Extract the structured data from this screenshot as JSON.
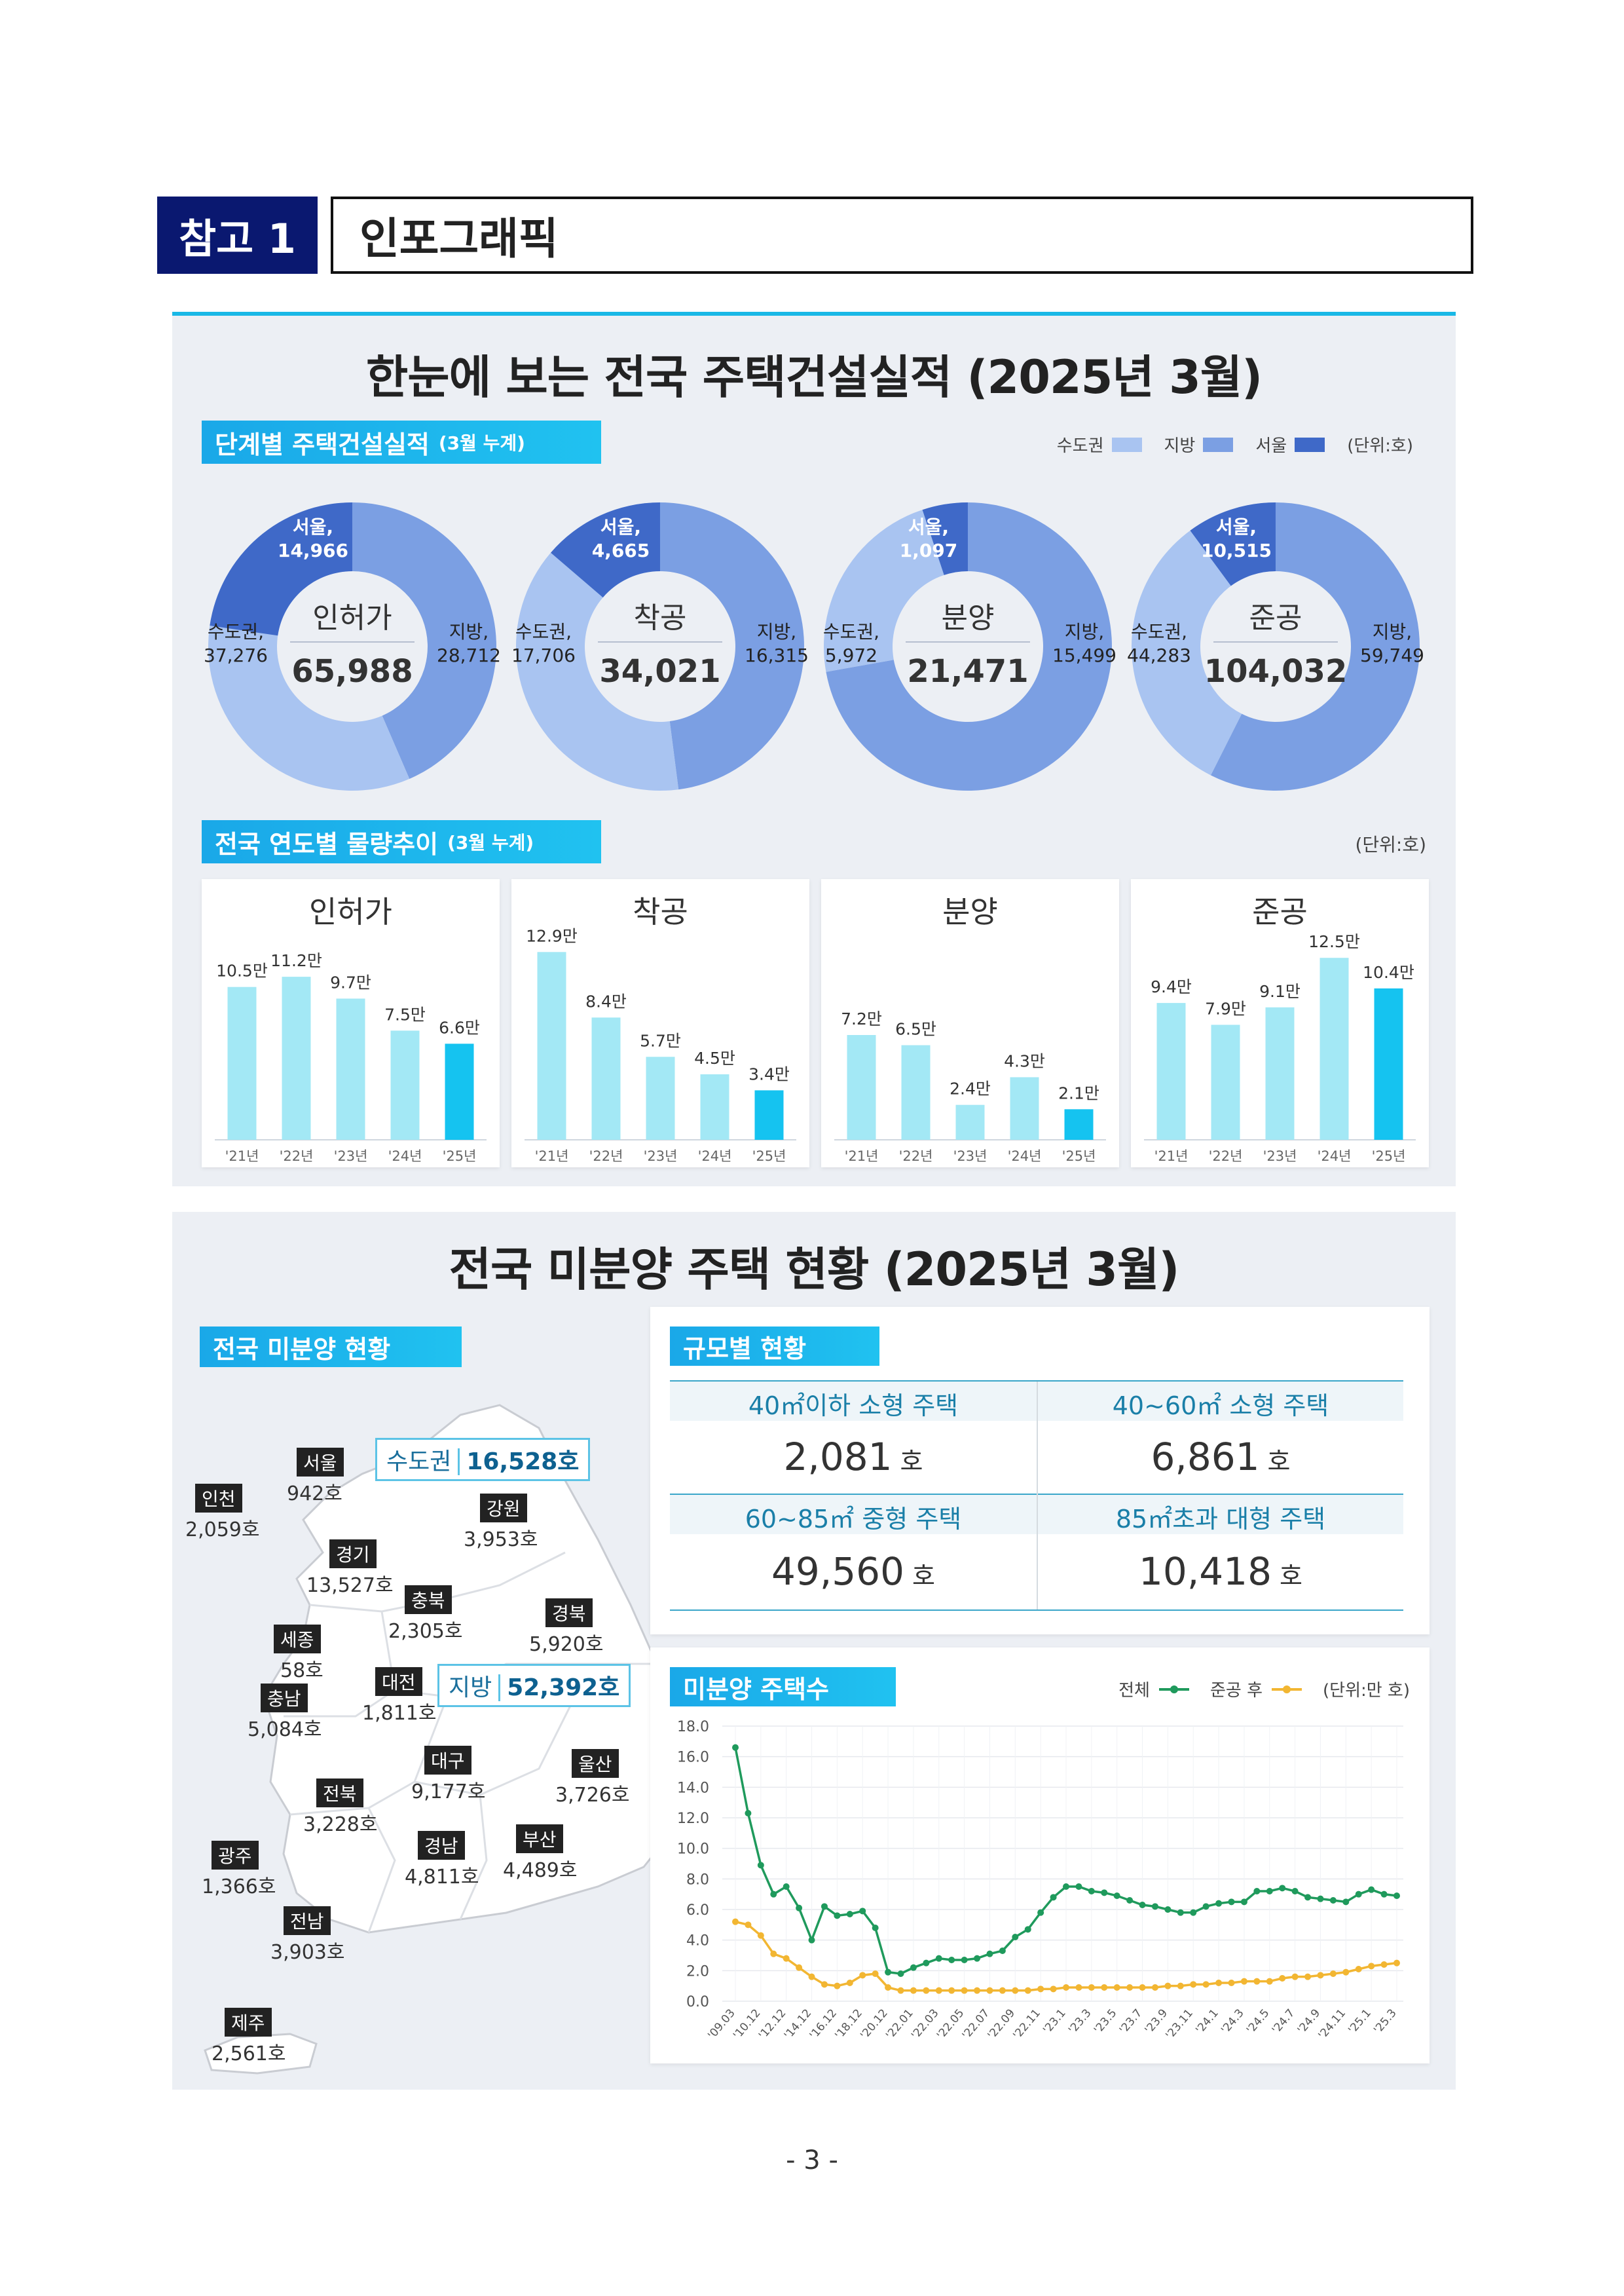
{
  "header": {
    "tag": "참고 1",
    "title": "인포그래픽"
  },
  "infographic": {
    "title": "한눈에 보는 전국 주택건설실적 (2025년 3월)",
    "stage_section": {
      "label": "단계별 주택건설실적",
      "sublabel": "(3월 누계)"
    },
    "legend": [
      {
        "label": "수도권",
        "color": "#a9c4f1"
      },
      {
        "label": "지방",
        "color": "#7b9fe3"
      },
      {
        "label": "서울",
        "color": "#3f69c8"
      }
    ],
    "unit": "(단위:호)",
    "donuts": [
      {
        "name": "인허가",
        "total": "65,988",
        "seoul_label": "서울,",
        "seoul": "14,966",
        "metro_label": "수도권,",
        "metro": "37,276",
        "local_label": "지방,",
        "local": "28,712",
        "metro_v": 37276,
        "local_v": 28712,
        "seoul_v": 14966
      },
      {
        "name": "착공",
        "total": "34,021",
        "seoul_label": "서울,",
        "seoul": "4,665",
        "metro_label": "수도권,",
        "metro": "17,706",
        "local_label": "지방,",
        "local": "16,315",
        "metro_v": 17706,
        "local_v": 16315,
        "seoul_v": 4665
      },
      {
        "name": "분양",
        "total": "21,471",
        "seoul_label": "서울,",
        "seoul": "1,097",
        "metro_label": "수도권,",
        "metro": "5,972",
        "local_label": "지방,",
        "local": "15,499",
        "metro_v": 5972,
        "local_v": 15499,
        "seoul_v": 1097
      },
      {
        "name": "준공",
        "total": "104,032",
        "seoul_label": "서울,",
        "seoul": "10,515",
        "metro_label": "수도권,",
        "metro": "44,283",
        "local_label": "지방,",
        "local": "59,749",
        "metro_v": 44283,
        "local_v": 59749,
        "seoul_v": 10515
      }
    ],
    "yearly_section": {
      "label": "전국 연도별 물량추이",
      "sublabel": "(3월 누계)"
    },
    "yearly_unit": "(단위:호)"
  },
  "chart_data": [
    {
      "type": "bar",
      "title": "인허가",
      "categories": [
        "'21년",
        "'22년",
        "'23년",
        "'24년",
        "'25년"
      ],
      "values": [
        10.5,
        11.2,
        9.7,
        7.5,
        6.6
      ],
      "labels": [
        "10.5만",
        "11.2만",
        "9.7만",
        "7.5만",
        "6.6만"
      ]
    },
    {
      "type": "bar",
      "title": "착공",
      "categories": [
        "'21년",
        "'22년",
        "'23년",
        "'24년",
        "'25년"
      ],
      "values": [
        12.9,
        8.4,
        5.7,
        4.5,
        3.4
      ],
      "labels": [
        "12.9만",
        "8.4만",
        "5.7만",
        "4.5만",
        "3.4만"
      ]
    },
    {
      "type": "bar",
      "title": "분양",
      "categories": [
        "'21년",
        "'22년",
        "'23년",
        "'24년",
        "'25년"
      ],
      "values": [
        7.2,
        6.5,
        2.4,
        4.3,
        2.1
      ],
      "labels": [
        "7.2만",
        "6.5만",
        "2.4만",
        "4.3만",
        "2.1만"
      ]
    },
    {
      "type": "bar",
      "title": "준공",
      "categories": [
        "'21년",
        "'22년",
        "'23년",
        "'24년",
        "'25년"
      ],
      "values": [
        9.4,
        7.9,
        9.1,
        12.5,
        10.4
      ],
      "labels": [
        "9.4만",
        "7.9만",
        "9.1만",
        "12.5만",
        "10.4만"
      ]
    },
    {
      "type": "line",
      "title": "미분양 주택수",
      "unit": "(단위:만 호)",
      "ylim": [
        0,
        18
      ],
      "yticks": [
        "0.0",
        "2.0",
        "4.0",
        "6.0",
        "8.0",
        "10.0",
        "12.0",
        "14.0",
        "16.0",
        "18.0"
      ],
      "x_labels": [
        "'09.03",
        "'10.12",
        "'12.12",
        "'14.12",
        "'16.12",
        "'18.12",
        "'20.12",
        "'22.01",
        "'22.03",
        "'22.05",
        "'22.07",
        "'22.09",
        "'22.11",
        "'23.1",
        "'23.3",
        "'23.5",
        "'23.7",
        "'23.9",
        "'23.11",
        "'24.1",
        "'24.3",
        "'24.5",
        "'24.7",
        "'24.9",
        "'24.11",
        "'25.1",
        "'25.3"
      ],
      "series": [
        {
          "name": "전체",
          "color": "#1f9a5c",
          "values": [
            16.6,
            12.3,
            8.9,
            7.0,
            7.5,
            6.1,
            4.0,
            6.2,
            5.6,
            5.7,
            5.9,
            4.8,
            1.9,
            1.8,
            2.2,
            2.5,
            2.8,
            2.7,
            2.7,
            2.8,
            3.1,
            3.3,
            4.2,
            4.7,
            5.8,
            6.8,
            7.5,
            7.5,
            7.2,
            7.1,
            6.9,
            6.6,
            6.3,
            6.2,
            6.0,
            5.8,
            5.8,
            6.2,
            6.4,
            6.5,
            6.5,
            7.2,
            7.2,
            7.4,
            7.2,
            6.8,
            6.7,
            6.6,
            6.5,
            7.0,
            7.3,
            7.0,
            6.9
          ]
        },
        {
          "name": "준공 후",
          "color": "#f2b632",
          "values": [
            5.2,
            5.0,
            4.3,
            3.1,
            2.8,
            2.2,
            1.6,
            1.1,
            1.0,
            1.2,
            1.7,
            1.8,
            0.9,
            0.7,
            0.7,
            0.7,
            0.7,
            0.7,
            0.7,
            0.7,
            0.7,
            0.7,
            0.7,
            0.7,
            0.8,
            0.8,
            0.9,
            0.9,
            0.9,
            0.9,
            0.9,
            0.9,
            0.9,
            0.9,
            1.0,
            1.0,
            1.1,
            1.1,
            1.2,
            1.2,
            1.3,
            1.3,
            1.3,
            1.5,
            1.6,
            1.6,
            1.7,
            1.8,
            1.9,
            2.1,
            2.3,
            2.4,
            2.5
          ]
        }
      ]
    }
  ],
  "unsold": {
    "title": "전국 미분양 주택 현황 (2025년 3월)",
    "map_section": "전국 미분양 현황",
    "metro_zone": {
      "label": "수도권",
      "value": "16,528호"
    },
    "local_zone": {
      "label": "지방",
      "value": "52,392호"
    },
    "regions": [
      {
        "name": "서울",
        "value": "942호"
      },
      {
        "name": "인천",
        "value": "2,059호"
      },
      {
        "name": "강원",
        "value": "3,953호"
      },
      {
        "name": "경기",
        "value": "13,527호"
      },
      {
        "name": "충북",
        "value": "2,305호"
      },
      {
        "name": "경북",
        "value": "5,920호"
      },
      {
        "name": "세종",
        "value": "58호"
      },
      {
        "name": "대전",
        "value": "1,811호"
      },
      {
        "name": "충남",
        "value": "5,084호"
      },
      {
        "name": "대구",
        "value": "9,177호"
      },
      {
        "name": "울산",
        "value": "3,726호"
      },
      {
        "name": "전북",
        "value": "3,228호"
      },
      {
        "name": "경남",
        "value": "4,811호"
      },
      {
        "name": "부산",
        "value": "4,489호"
      },
      {
        "name": "광주",
        "value": "1,366호"
      },
      {
        "name": "전남",
        "value": "3,903호"
      },
      {
        "name": "제주",
        "value": "2,561호"
      }
    ],
    "size_section": "규모별 현황",
    "sizes": [
      {
        "label": "40㎡이하 소형 주택",
        "value": "2,081",
        "unit": "호"
      },
      {
        "label": "40~60㎡ 소형 주택",
        "value": "6,861",
        "unit": "호"
      },
      {
        "label": "60~85㎡ 중형 주택",
        "value": "49,560",
        "unit": "호"
      },
      {
        "label": "85㎡초과 대형 주택",
        "value": "10,418",
        "unit": "호"
      }
    ],
    "count_section": "미분양 주택수",
    "count_legend_total": "전체",
    "count_legend_after": "준공 후",
    "count_unit": "(단위:만 호)"
  },
  "page_number": "- 3 -"
}
